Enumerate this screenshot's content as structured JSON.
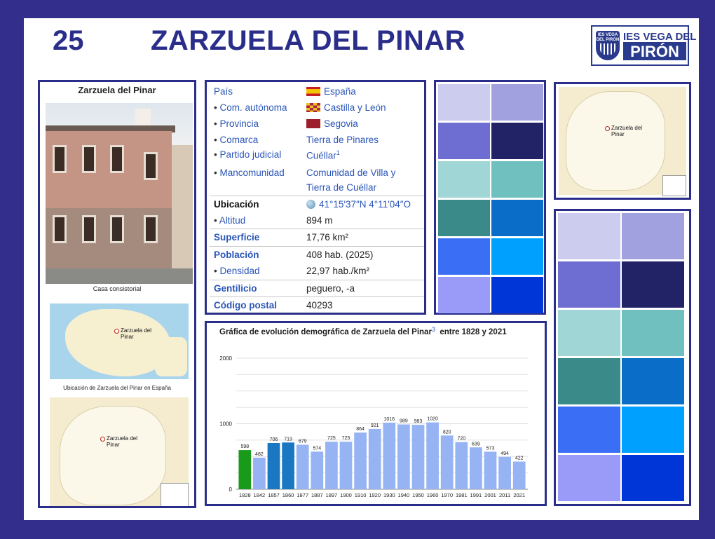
{
  "slide": {
    "number": "25",
    "title": "ZARZUELA DEL PINAR",
    "logo": {
      "shield_text": "IES VEGA DEL PIRÓN",
      "line1": "IES VEGA DEL",
      "line2": "PIRÓN"
    }
  },
  "infobox": {
    "heading": "Zarzuela del Pinar",
    "photo_caption": "Casa consistorial",
    "map_spain_caption": "Ubicación de Zarzuela del Pinar en España",
    "map_label_line1": "Zarzuela del",
    "map_label_line2": "Pinar"
  },
  "table": {
    "pais": {
      "key": "País",
      "value": "España"
    },
    "com": {
      "key": "Com. autónoma",
      "value": "Castilla y León"
    },
    "provincia": {
      "key": "Provincia",
      "value": "Segovia"
    },
    "comarca": {
      "key": "Comarca",
      "value": "Tierra de Pinares"
    },
    "partido": {
      "key": "Partido judicial",
      "value": "Cuéllar",
      "ref": "1"
    },
    "mancomunidad": {
      "key": "Mancomunidad",
      "value1": "Comunidad de Villa y",
      "value2": "Tierra de Cuéllar"
    },
    "ubicacion": {
      "key": "Ubicación",
      "value": "41°15′37″N 4°11′04″O"
    },
    "altitud": {
      "key": "Altitud",
      "value": "894 m"
    },
    "superficie": {
      "key": "Superficie",
      "value": "17,76 km²"
    },
    "poblacion": {
      "key": "Población",
      "value": "408 hab. (2025)"
    },
    "densidad": {
      "key": "Densidad",
      "value": "22,97 hab./km²"
    },
    "gentilicio": {
      "key": "Gentilicio",
      "value": "peguero, -a"
    },
    "postal": {
      "key": "Código postal",
      "value": "40293"
    },
    "bullet": "•"
  },
  "palette": {
    "colors": [
      "#ccccee",
      "#a1a1e0",
      "#6e6ed2",
      "#222266",
      "#a0d6d6",
      "#70c0c0",
      "#3a8a8a",
      "#0a6ec8",
      "#3a6ef4",
      "#00a0ff",
      "#9a9af8",
      "#0035d8"
    ]
  },
  "chart_title": {
    "text": "Gráfica de evolución demográfica de Zarzuela del Pinar",
    "ref": "3",
    "suffix": "entre 1828 y 2021"
  },
  "chart_data": {
    "type": "bar",
    "title": "Gráfica de evolución demográfica de Zarzuela del Pinar entre 1828 y 2021",
    "categories": [
      "1828",
      "1842",
      "1857",
      "1860",
      "1877",
      "1887",
      "1897",
      "1900",
      "1910",
      "1920",
      "1930",
      "1940",
      "1950",
      "1960",
      "1970",
      "1981",
      "1991",
      "2001",
      "2011",
      "2021"
    ],
    "values": [
      598,
      482,
      706,
      713,
      679,
      574,
      725,
      725,
      864,
      921,
      1016,
      989,
      983,
      1020,
      820,
      720,
      639,
      573,
      494,
      422
    ],
    "bar_colors": [
      "#1a9a1a",
      "#96b4f4",
      "#1a78c2",
      "#1a78c2",
      "#96b4f4",
      "#96b4f4",
      "#96b4f4",
      "#96b4f4",
      "#96b4f4",
      "#96b4f4",
      "#96b4f4",
      "#96b4f4",
      "#96b4f4",
      "#96b4f4",
      "#96b4f4",
      "#96b4f4",
      "#96b4f4",
      "#96b4f4",
      "#96b4f4",
      "#96b4f4"
    ],
    "yticks": [
      "0",
      "1000",
      "2000"
    ],
    "ylim": [
      0,
      2000
    ],
    "grid": true
  }
}
